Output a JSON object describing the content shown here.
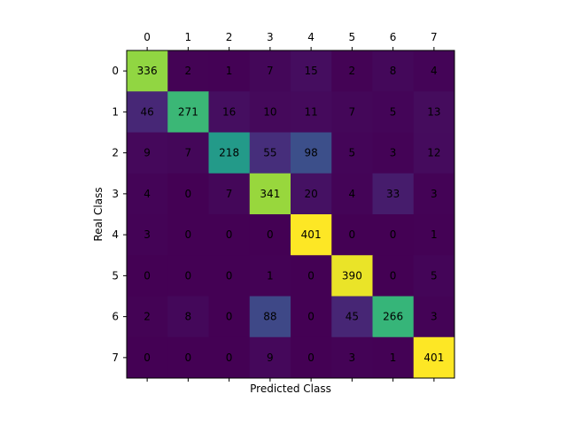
{
  "chart_data": {
    "type": "heatmap",
    "title": "",
    "xlabel": "Predicted Class",
    "ylabel": "Real Class",
    "x_categories": [
      "0",
      "1",
      "2",
      "3",
      "4",
      "5",
      "6",
      "7"
    ],
    "y_categories": [
      "0",
      "1",
      "2",
      "3",
      "4",
      "5",
      "6",
      "7"
    ],
    "x_tick_position": "top",
    "colormap": "viridis",
    "value_range": [
      0,
      401
    ],
    "matrix": [
      [
        336,
        2,
        1,
        7,
        15,
        2,
        8,
        4
      ],
      [
        46,
        271,
        16,
        10,
        11,
        7,
        5,
        13
      ],
      [
        9,
        7,
        218,
        55,
        98,
        5,
        3,
        12
      ],
      [
        4,
        0,
        7,
        341,
        20,
        4,
        33,
        3
      ],
      [
        3,
        0,
        0,
        0,
        401,
        0,
        0,
        1
      ],
      [
        0,
        0,
        0,
        1,
        0,
        390,
        0,
        5
      ],
      [
        2,
        8,
        0,
        88,
        0,
        45,
        266,
        3
      ],
      [
        0,
        0,
        0,
        9,
        0,
        3,
        1,
        401
      ]
    ]
  }
}
